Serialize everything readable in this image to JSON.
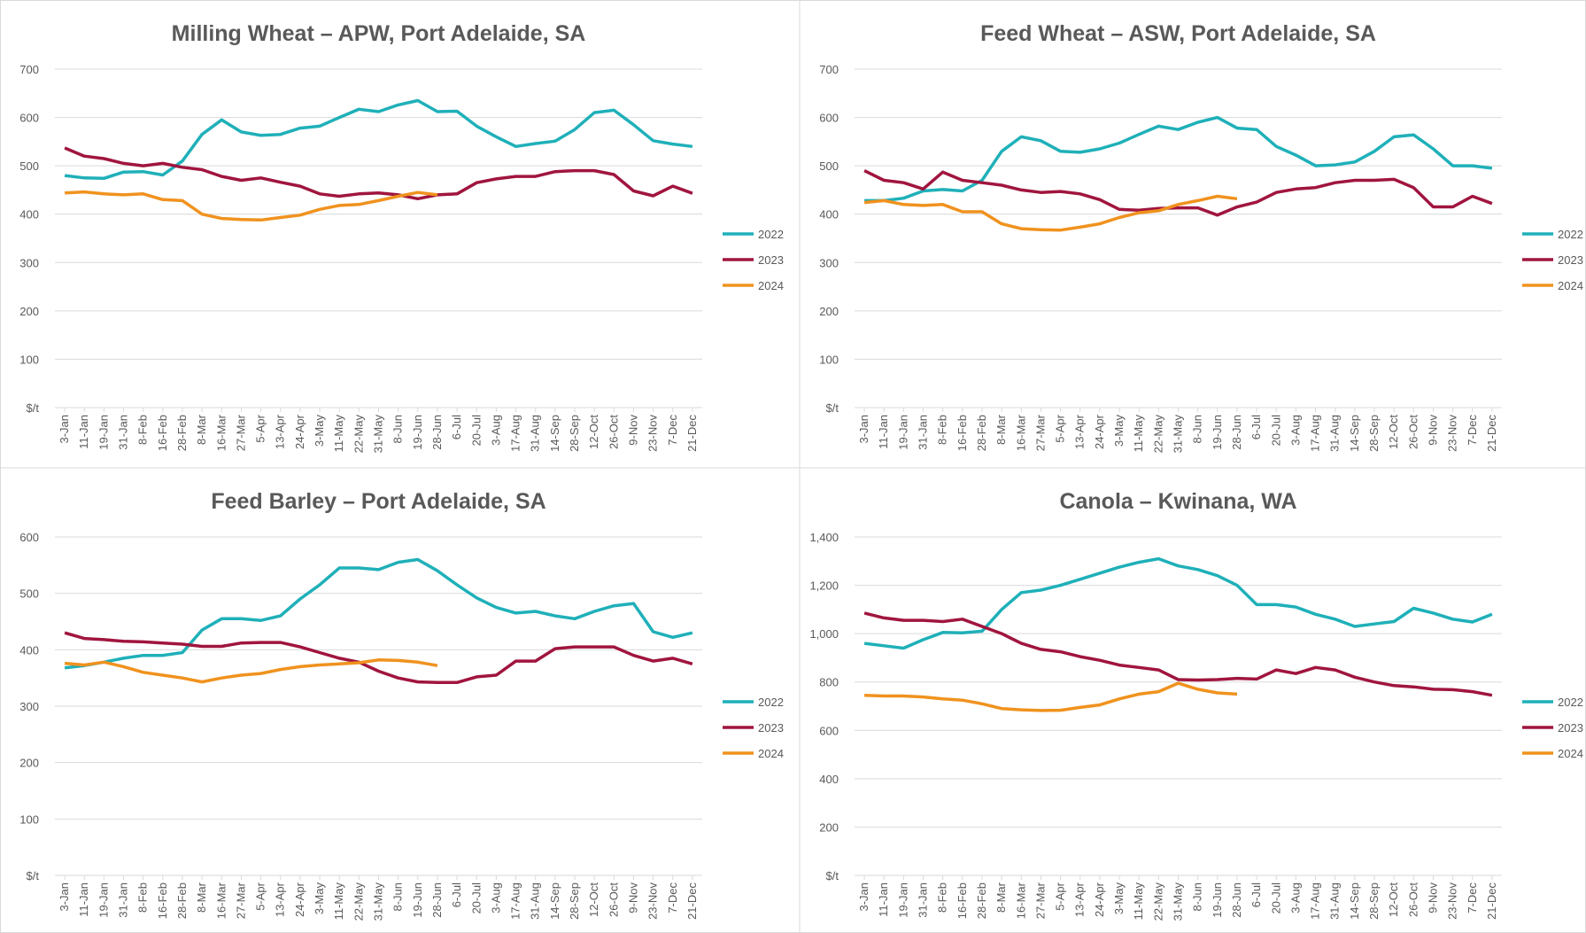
{
  "chart_data": [
    {
      "type": "line",
      "title": "Milling Wheat – APW, Port Adelaide, SA",
      "categories": [
        "3-Jan",
        "11-Jan",
        "19-Jan",
        "31-Jan",
        "8-Feb",
        "16-Feb",
        "28-Feb",
        "8-Mar",
        "16-Mar",
        "27-Mar",
        "5-Apr",
        "13-Apr",
        "24-Apr",
        "3-May",
        "11-May",
        "22-May",
        "31-May",
        "8-Jun",
        "19-Jun",
        "28-Jun",
        "6-Jul",
        "20-Jul",
        "3-Aug",
        "17-Aug",
        "31-Aug",
        "14-Sep",
        "28-Sep",
        "12-Oct",
        "26-Oct",
        "9-Nov",
        "23-Nov",
        "7-Dec",
        "21-Dec"
      ],
      "series": [
        {
          "name": "2022",
          "color": "#1fb0b9",
          "values": [
            480,
            475,
            474,
            487,
            488,
            481,
            510,
            565,
            595,
            570,
            563,
            565,
            578,
            582,
            600,
            617,
            612,
            626,
            635,
            612,
            613,
            582,
            560,
            540,
            546,
            551,
            575,
            610,
            615,
            585,
            552,
            545,
            540
          ]
        },
        {
          "name": "2023",
          "color": "#a0153e",
          "values": [
            537,
            520,
            515,
            505,
            500,
            505,
            497,
            492,
            478,
            470,
            475,
            466,
            458,
            442,
            437,
            442,
            444,
            440,
            432,
            440,
            442,
            465,
            473,
            478,
            478,
            488,
            490,
            490,
            482,
            448,
            438,
            458,
            443
          ]
        },
        {
          "name": "2024",
          "color": "#f0921e",
          "values": [
            444,
            446,
            442,
            440,
            442,
            430,
            428,
            400,
            391,
            389,
            388,
            393,
            398,
            410,
            418,
            420,
            428,
            437,
            445,
            440,
            null,
            null,
            null,
            null,
            null,
            null,
            null,
            null,
            null,
            null,
            null,
            null,
            null
          ]
        }
      ],
      "ylim": [
        0,
        700
      ],
      "yticks": [
        {
          "value": 0,
          "label": "$/t"
        },
        100,
        200,
        300,
        400,
        500,
        600,
        700
      ],
      "legend": "right"
    },
    {
      "type": "line",
      "title": "Feed Wheat – ASW, Port Adelaide, SA",
      "categories": [
        "3-Jan",
        "11-Jan",
        "19-Jan",
        "31-Jan",
        "8-Feb",
        "16-Feb",
        "28-Feb",
        "8-Mar",
        "16-Mar",
        "27-Mar",
        "5-Apr",
        "13-Apr",
        "24-Apr",
        "3-May",
        "11-May",
        "22-May",
        "31-May",
        "8-Jun",
        "19-Jun",
        "28-Jun",
        "6-Jul",
        "20-Jul",
        "3-Aug",
        "17-Aug",
        "31-Aug",
        "14-Sep",
        "28-Sep",
        "12-Oct",
        "26-Oct",
        "9-Nov",
        "23-Nov",
        "7-Dec",
        "21-Dec"
      ],
      "series": [
        {
          "name": "2022",
          "color": "#1fb0b9",
          "values": [
            428,
            428,
            433,
            448,
            451,
            448,
            470,
            530,
            560,
            552,
            530,
            528,
            535,
            547,
            565,
            582,
            575,
            590,
            600,
            578,
            575,
            540,
            522,
            500,
            502,
            508,
            530,
            560,
            564,
            535,
            500,
            500,
            495
          ]
        },
        {
          "name": "2023",
          "color": "#a0153e",
          "values": [
            490,
            470,
            465,
            452,
            487,
            470,
            465,
            460,
            450,
            445,
            447,
            442,
            430,
            410,
            408,
            412,
            413,
            413,
            398,
            415,
            425,
            445,
            452,
            455,
            465,
            470,
            470,
            472,
            455,
            415,
            415,
            437,
            422
          ]
        },
        {
          "name": "2024",
          "color": "#f0921e",
          "values": [
            424,
            428,
            420,
            418,
            420,
            405,
            405,
            380,
            370,
            368,
            367,
            373,
            380,
            393,
            403,
            407,
            420,
            428,
            437,
            432,
            null,
            null,
            null,
            null,
            null,
            null,
            null,
            null,
            null,
            null,
            null,
            null,
            null
          ]
        }
      ],
      "ylim": [
        0,
        700
      ],
      "yticks": [
        {
          "value": 0,
          "label": "$/t"
        },
        100,
        200,
        300,
        400,
        500,
        600,
        700
      ],
      "legend": "right"
    },
    {
      "type": "line",
      "title": "Feed Barley – Port Adelaide, SA",
      "categories": [
        "3-Jan",
        "11-Jan",
        "19-Jan",
        "31-Jan",
        "8-Feb",
        "16-Feb",
        "28-Feb",
        "8-Mar",
        "16-Mar",
        "27-Mar",
        "5-Apr",
        "13-Apr",
        "24-Apr",
        "3-May",
        "11-May",
        "22-May",
        "31-May",
        "8-Jun",
        "19-Jun",
        "28-Jun",
        "6-Jul",
        "20-Jul",
        "3-Aug",
        "17-Aug",
        "31-Aug",
        "14-Sep",
        "28-Sep",
        "12-Oct",
        "26-Oct",
        "9-Nov",
        "23-Nov",
        "7-Dec",
        "21-Dec"
      ],
      "series": [
        {
          "name": "2022",
          "color": "#1fb0b9",
          "values": [
            368,
            372,
            378,
            385,
            390,
            390,
            395,
            435,
            455,
            455,
            452,
            460,
            490,
            515,
            545,
            545,
            542,
            555,
            560,
            540,
            515,
            492,
            475,
            465,
            468,
            460,
            455,
            468,
            478,
            482,
            432,
            422,
            430
          ]
        },
        {
          "name": "2023",
          "color": "#a0153e",
          "values": [
            430,
            420,
            418,
            415,
            414,
            412,
            410,
            406,
            406,
            412,
            413,
            413,
            405,
            395,
            385,
            378,
            362,
            350,
            343,
            342,
            342,
            352,
            355,
            380,
            380,
            402,
            405,
            405,
            405,
            390,
            380,
            385,
            375
          ]
        },
        {
          "name": "2024",
          "color": "#f0921e",
          "values": [
            376,
            373,
            378,
            370,
            360,
            355,
            350,
            343,
            350,
            355,
            358,
            365,
            370,
            373,
            375,
            377,
            382,
            381,
            378,
            372,
            null,
            null,
            null,
            null,
            null,
            null,
            null,
            null,
            null,
            null,
            null,
            null,
            null
          ]
        }
      ],
      "ylim": [
        0,
        600
      ],
      "yticks": [
        {
          "value": 0,
          "label": "$/t"
        },
        100,
        200,
        300,
        400,
        500,
        600
      ],
      "legend": "right"
    },
    {
      "type": "line",
      "title": "Canola – Kwinana, WA",
      "categories": [
        "3-Jan",
        "11-Jan",
        "19-Jan",
        "31-Jan",
        "8-Feb",
        "16-Feb",
        "28-Feb",
        "8-Mar",
        "16-Mar",
        "27-Mar",
        "5-Apr",
        "13-Apr",
        "24-Apr",
        "3-May",
        "11-May",
        "22-May",
        "31-May",
        "8-Jun",
        "19-Jun",
        "28-Jun",
        "6-Jul",
        "20-Jul",
        "3-Aug",
        "17-Aug",
        "31-Aug",
        "14-Sep",
        "28-Sep",
        "12-Oct",
        "26-Oct",
        "9-Nov",
        "23-Nov",
        "7-Dec",
        "21-Dec"
      ],
      "series": [
        {
          "name": "2022",
          "color": "#1fb0b9",
          "values": [
            960,
            950,
            940,
            975,
            1005,
            1003,
            1010,
            1100,
            1170,
            1180,
            1200,
            1225,
            1250,
            1275,
            1295,
            1310,
            1280,
            1265,
            1240,
            1200,
            1120,
            1120,
            1110,
            1080,
            1060,
            1030,
            1040,
            1050,
            1105,
            1085,
            1060,
            1048,
            1080
          ]
        },
        {
          "name": "2023",
          "color": "#a0153e",
          "values": [
            1085,
            1065,
            1055,
            1055,
            1050,
            1060,
            1030,
            1000,
            960,
            935,
            925,
            905,
            890,
            870,
            860,
            850,
            810,
            808,
            810,
            815,
            812,
            850,
            835,
            860,
            850,
            820,
            800,
            785,
            780,
            770,
            768,
            760,
            745
          ]
        },
        {
          "name": "2024",
          "color": "#f0921e",
          "values": [
            745,
            742,
            742,
            738,
            730,
            725,
            710,
            690,
            685,
            682,
            683,
            695,
            705,
            730,
            750,
            760,
            795,
            770,
            755,
            750,
            null,
            null,
            null,
            null,
            null,
            null,
            null,
            null,
            null,
            null,
            null,
            null,
            null
          ]
        }
      ],
      "ylim": [
        0,
        1400
      ],
      "yticks": [
        {
          "value": 0,
          "label": "$/t"
        },
        200,
        400,
        600,
        800,
        {
          "value": 1000,
          "label": "1,000"
        },
        {
          "value": 1200,
          "label": "1,200"
        },
        {
          "value": 1400,
          "label": "1,400"
        }
      ],
      "legend": "right"
    }
  ]
}
